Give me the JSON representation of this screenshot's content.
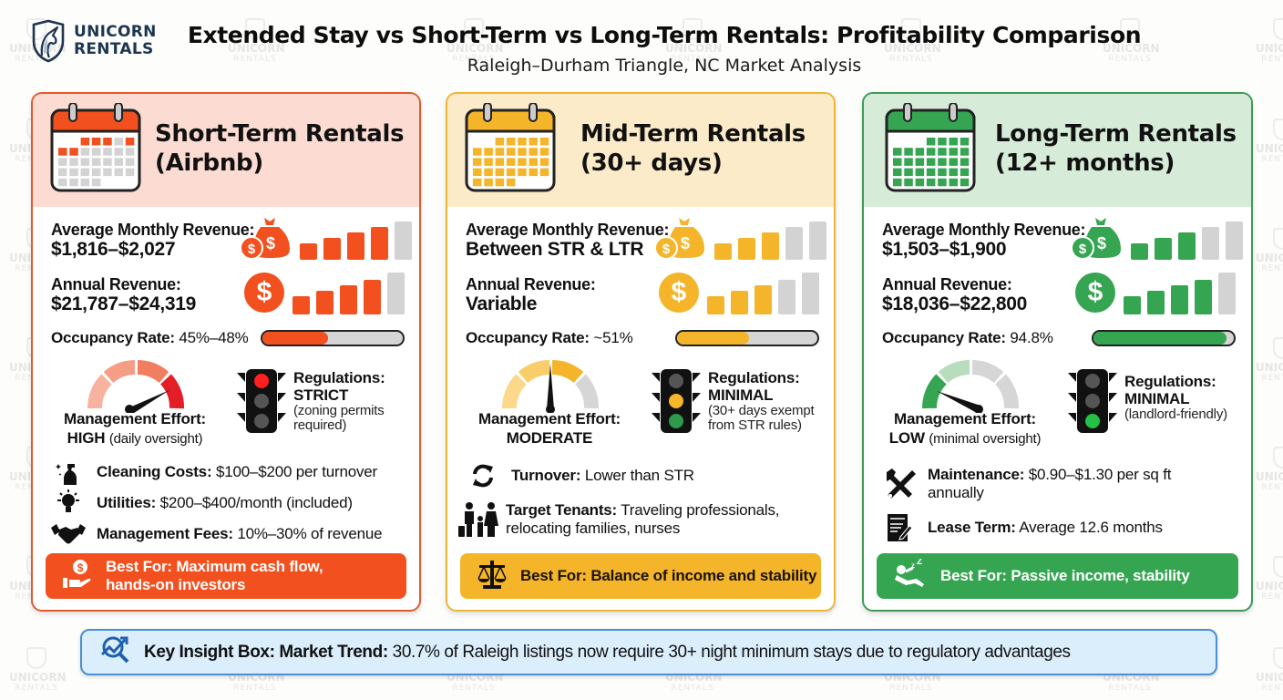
{
  "brand": {
    "line1": "UNICORN",
    "line2": "RENTALS",
    "logo_icon": "unicorn-shield-icon"
  },
  "header": {
    "title": "Extended Stay vs Short-Term vs Long-Term Rentals: Profitability Comparison",
    "subtitle": "Raleigh–Durham Triangle, NC Market Analysis"
  },
  "colors": {
    "str_accent": "#f2501f",
    "str_header_bg": "#fcdcd2",
    "mtr_accent": "#f4b52a",
    "mtr_header_bg": "#fcebc9",
    "ltr_accent": "#36a552",
    "ltr_header_bg": "#d6ecd8",
    "insight_bg": "#dbeefc",
    "insight_border": "#4a8fd6",
    "inactive_gray": "#d3d3d3",
    "brand_navy": "#1d3550"
  },
  "cards": [
    {
      "id": "str",
      "title_line1": "Short-Term Rentals",
      "title_line2": "(Airbnb)",
      "calendar_icon": "calendar-icon",
      "monthly_revenue_label": "Average Monthly Revenue:",
      "monthly_revenue_value": "$1,816–$2,027",
      "monthly_revenue_icon": "money-bag-icon",
      "monthly_bars_filled": 4,
      "annual_revenue_label": "Annual Revenue:",
      "annual_revenue_value": "$21,787–$24,319",
      "annual_revenue_icon": "dollar-coin-icon",
      "annual_bars_filled": 4,
      "occupancy_label": "Occupancy Rate:",
      "occupancy_value": "45%–48%",
      "occupancy_fill_pct": 47,
      "effort_label": "Management Effort:",
      "effort_level": "HIGH",
      "effort_note": "(daily oversight)",
      "effort_gauge_icon": "gauge-high-icon",
      "regulations_label": "Regulations:",
      "regulations_level": "STRICT",
      "regulations_note": "(zoning permits required)",
      "traffic_light_icon": "traffic-light-red-icon",
      "details": [
        {
          "icon": "spray-bottle-icon",
          "label": "Cleaning Costs:",
          "value": "$100–$200 per turnover"
        },
        {
          "icon": "lightbulb-icon",
          "label": "Utilities:",
          "value": "$200–$400/month (included)"
        },
        {
          "icon": "handshake-icon",
          "label": "Management Fees:",
          "value": "10%–30% of revenue"
        }
      ],
      "best_for_icon": "hand-money-icon",
      "best_for": "Best For: Maximum cash flow, hands-on investors"
    },
    {
      "id": "mtr",
      "title_line1": "Mid-Term Rentals",
      "title_line2": "(30+ days)",
      "calendar_icon": "calendar-icon",
      "monthly_revenue_label": "Average Monthly Revenue:",
      "monthly_revenue_value": "Between STR & LTR",
      "monthly_revenue_icon": "money-bag-icon",
      "monthly_bars_filled": 3,
      "annual_revenue_label": "Annual Revenue:",
      "annual_revenue_value": "Variable",
      "annual_revenue_icon": "dollar-coin-icon",
      "annual_bars_filled": 3,
      "occupancy_label": "Occupancy Rate:",
      "occupancy_value": "~51%",
      "occupancy_fill_pct": 51,
      "effort_label": "Management Effort:",
      "effort_level": "MODERATE",
      "effort_note": "",
      "effort_gauge_icon": "gauge-moderate-icon",
      "regulations_label": "Regulations:",
      "regulations_level": "MINIMAL",
      "regulations_note": "(30+ days exempt from STR rules)",
      "traffic_light_icon": "traffic-light-yellow-icon",
      "details": [
        {
          "icon": "refresh-cycle-icon",
          "label": "Turnover:",
          "value": "Lower than STR"
        },
        {
          "icon": "family-traveler-icon",
          "label": "Target Tenants:",
          "value": "Traveling professionals, relocating families, nurses"
        }
      ],
      "best_for_icon": "balance-scale-icon",
      "best_for": "Best For: Balance of income and stability"
    },
    {
      "id": "ltr",
      "title_line1": "Long-Term Rentals",
      "title_line2": "(12+ months)",
      "calendar_icon": "calendar-icon",
      "monthly_revenue_label": "Average Monthly Revenue:",
      "monthly_revenue_value": "$1,503–$1,900",
      "monthly_revenue_icon": "money-bag-icon",
      "monthly_bars_filled": 3,
      "annual_revenue_label": "Annual Revenue:",
      "annual_revenue_value": "$18,036–$22,800",
      "annual_revenue_icon": "dollar-coin-icon",
      "annual_bars_filled": 4,
      "occupancy_label": "Occupancy Rate:",
      "occupancy_value": "94.8%",
      "occupancy_fill_pct": 94.8,
      "effort_label": "Management Effort:",
      "effort_level": "LOW",
      "effort_note": "(minimal oversight)",
      "effort_gauge_icon": "gauge-low-icon",
      "regulations_label": "Regulations:",
      "regulations_level": "MINIMAL",
      "regulations_note": "(landlord-friendly)",
      "traffic_light_icon": "traffic-light-green-icon",
      "details": [
        {
          "icon": "tools-icon",
          "label": "Maintenance:",
          "value": "$0.90–$1.30 per sq ft annually"
        },
        {
          "icon": "lease-document-icon",
          "label": "Lease Term:",
          "value": "Average 12.6 months"
        }
      ],
      "best_for_icon": "relaxing-person-icon",
      "best_for": "Best For: Passive income, stability"
    }
  ],
  "insight": {
    "icon": "trend-magnifier-icon",
    "label": "Key Insight Box: Market Trend:",
    "text": "30.7% of Raleigh listings now require 30+ night minimum stays due to regulatory advantages"
  },
  "watermark": {
    "line1": "UNICORN",
    "line2": "RENTALS"
  }
}
